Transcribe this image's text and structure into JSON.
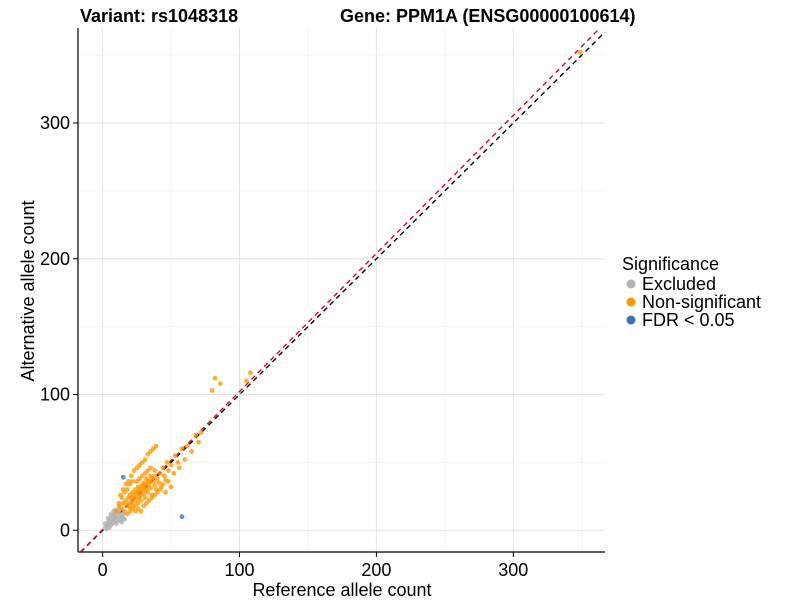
{
  "chart_data": {
    "type": "scatter",
    "title_left": "Variant: rs1048318",
    "title_right": "Gene: PPM1A (ENSG00000100614)",
    "xlabel": "Reference allele count",
    "ylabel": "Alternative allele count",
    "xlim": [
      -18,
      367
    ],
    "ylim": [
      -16,
      370
    ],
    "xticks": [
      0,
      100,
      200,
      300
    ],
    "yticks": [
      0,
      100,
      200,
      300
    ],
    "grid": true,
    "legend": {
      "title": "Significance",
      "position": "right",
      "entries": [
        {
          "label": "Excluded",
          "color": "#b3b3b3"
        },
        {
          "label": "Non-significant",
          "color": "#ff9900"
        },
        {
          "label": "FDR < 0.05",
          "color": "#3a73b0"
        }
      ]
    },
    "reference_lines": [
      {
        "name": "identity",
        "slope": 1,
        "intercept": 0,
        "color": "#000000",
        "style": "dashed"
      },
      {
        "name": "fit",
        "slope": 1.017,
        "intercept": 0.5,
        "color": "#e0001b",
        "style": "dashed"
      }
    ],
    "series": [
      {
        "name": "Excluded",
        "color": "#b3b3b3",
        "points": [
          [
            2,
            2
          ],
          [
            3,
            4
          ],
          [
            4,
            3
          ],
          [
            4,
            6
          ],
          [
            5,
            5
          ],
          [
            5,
            8
          ],
          [
            6,
            4
          ],
          [
            6,
            7
          ],
          [
            7,
            9
          ],
          [
            7,
            5
          ],
          [
            8,
            6
          ],
          [
            8,
            10
          ],
          [
            9,
            8
          ],
          [
            9,
            12
          ],
          [
            10,
            7
          ],
          [
            10,
            11
          ],
          [
            11,
            9
          ],
          [
            12,
            13
          ],
          [
            12,
            8
          ],
          [
            13,
            11
          ],
          [
            14,
            10
          ],
          [
            15,
            9
          ],
          [
            6,
            12
          ],
          [
            8,
            14
          ],
          [
            3,
            1
          ],
          [
            5,
            2
          ],
          [
            9,
            15
          ],
          [
            11,
            14
          ],
          [
            13,
            7
          ],
          [
            10,
            5
          ],
          [
            7,
            11
          ],
          [
            4,
            9
          ],
          [
            16,
            8
          ],
          [
            15,
            12
          ],
          [
            2,
            5
          ],
          [
            6,
            9
          ],
          [
            12,
            16
          ],
          [
            14,
            6
          ]
        ]
      },
      {
        "name": "Non-significant",
        "color": "#ff9900",
        "points": [
          [
            10,
            14
          ],
          [
            12,
            18
          ],
          [
            14,
            16
          ],
          [
            15,
            20
          ],
          [
            16,
            14
          ],
          [
            17,
            22
          ],
          [
            18,
            18
          ],
          [
            19,
            24
          ],
          [
            20,
            17
          ],
          [
            20,
            26
          ],
          [
            21,
            21
          ],
          [
            22,
            19
          ],
          [
            22,
            28
          ],
          [
            23,
            24
          ],
          [
            24,
            22
          ],
          [
            24,
            30
          ],
          [
            25,
            27
          ],
          [
            26,
            20
          ],
          [
            26,
            32
          ],
          [
            27,
            25
          ],
          [
            28,
            29
          ],
          [
            28,
            22
          ],
          [
            29,
            33
          ],
          [
            30,
            27
          ],
          [
            30,
            35
          ],
          [
            31,
            24
          ],
          [
            32,
            30
          ],
          [
            32,
            38
          ],
          [
            33,
            28
          ],
          [
            34,
            34
          ],
          [
            35,
            31
          ],
          [
            35,
            40
          ],
          [
            36,
            26
          ],
          [
            37,
            36
          ],
          [
            38,
            33
          ],
          [
            38,
            44
          ],
          [
            39,
            30
          ],
          [
            40,
            38
          ],
          [
            41,
            35
          ],
          [
            42,
            42
          ],
          [
            43,
            32
          ],
          [
            44,
            46
          ],
          [
            45,
            40
          ],
          [
            46,
            37
          ],
          [
            47,
            50
          ],
          [
            48,
            44
          ],
          [
            50,
            48
          ],
          [
            52,
            42
          ],
          [
            53,
            55
          ],
          [
            55,
            50
          ],
          [
            56,
            46
          ],
          [
            58,
            60
          ],
          [
            60,
            52
          ],
          [
            62,
            62
          ],
          [
            65,
            58
          ],
          [
            68,
            70
          ],
          [
            70,
            65
          ],
          [
            72,
            72
          ],
          [
            80,
            103
          ],
          [
            82,
            112
          ],
          [
            86,
            108
          ],
          [
            108,
            116
          ],
          [
            105,
            110
          ],
          [
            18,
            30
          ],
          [
            20,
            34
          ],
          [
            22,
            36
          ],
          [
            24,
            14
          ],
          [
            26,
            16
          ],
          [
            28,
            14
          ],
          [
            30,
            18
          ],
          [
            32,
            20
          ],
          [
            34,
            22
          ],
          [
            36,
            24
          ],
          [
            38,
            26
          ],
          [
            40,
            28
          ],
          [
            42,
            30
          ],
          [
            44,
            34
          ],
          [
            46,
            28
          ],
          [
            48,
            36
          ],
          [
            50,
            32
          ],
          [
            16,
            28
          ],
          [
            14,
            24
          ],
          [
            12,
            20
          ],
          [
            13,
            26
          ],
          [
            15,
            30
          ],
          [
            17,
            34
          ],
          [
            19,
            36
          ],
          [
            21,
            40
          ],
          [
            23,
            44
          ],
          [
            25,
            46
          ],
          [
            27,
            48
          ],
          [
            29,
            50
          ],
          [
            31,
            52
          ],
          [
            33,
            56
          ],
          [
            35,
            58
          ],
          [
            37,
            60
          ],
          [
            39,
            62
          ],
          [
            25,
            36
          ],
          [
            27,
            38
          ],
          [
            29,
            40
          ],
          [
            31,
            42
          ],
          [
            33,
            44
          ],
          [
            35,
            46
          ],
          [
            18,
            12
          ],
          [
            20,
            14
          ],
          [
            22,
            16
          ],
          [
            24,
            18
          ],
          [
            26,
            24
          ],
          [
            28,
            26
          ],
          [
            30,
            30
          ],
          [
            32,
            32
          ],
          [
            34,
            36
          ],
          [
            36,
            38
          ],
          [
            38,
            40
          ],
          [
            19,
            20
          ],
          [
            21,
            24
          ],
          [
            23,
            26
          ],
          [
            25,
            28
          ],
          [
            27,
            30
          ],
          [
            29,
            32
          ],
          [
            31,
            34
          ],
          [
            33,
            36
          ],
          [
            349,
            352
          ]
        ]
      },
      {
        "name": "FDR < 0.05",
        "color": "#3a73b0",
        "points": [
          [
            15,
            39
          ],
          [
            58,
            10
          ]
        ]
      }
    ]
  }
}
